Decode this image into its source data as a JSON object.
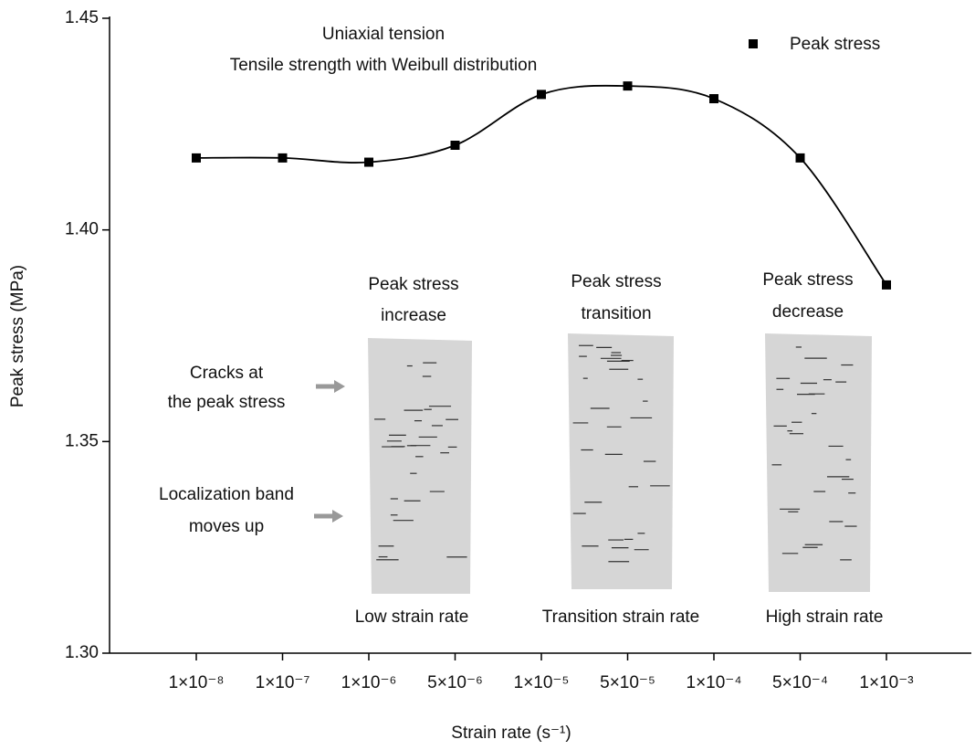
{
  "chart_data": {
    "type": "scatter",
    "x_label": "Strain rate (s⁻¹)",
    "y_label": "Peak stress (MPa)",
    "categories": [
      "1×10⁻⁸",
      "1×10⁻⁷",
      "1×10⁻⁶",
      "5×10⁻⁶",
      "1×10⁻⁵",
      "5×10⁻⁵",
      "1×10⁻⁴",
      "5×10⁻⁴",
      "1×10⁻³"
    ],
    "series": [
      {
        "name": "Peak stress",
        "color": "#000000",
        "values": [
          1.417,
          1.417,
          1.416,
          1.42,
          1.432,
          1.434,
          1.431,
          1.417,
          1.387
        ]
      }
    ],
    "ylim": [
      1.3,
      1.45
    ],
    "yticks": [
      {
        "value": 1.3,
        "label": "1.30"
      },
      {
        "value": 1.35,
        "label": "1.35"
      },
      {
        "value": 1.4,
        "label": "1.40"
      },
      {
        "value": 1.45,
        "label": "1.45"
      }
    ],
    "legend": "upper right",
    "annotations": {
      "header": [
        "Uniaxial tension",
        "Tensile strength with Weibull distribution"
      ],
      "panels": [
        {
          "title": [
            "Peak stress",
            "increase"
          ],
          "caption": "Low strain rate"
        },
        {
          "title": [
            "Peak stress",
            "transition"
          ],
          "caption": "Transition strain rate"
        },
        {
          "title": [
            "Peak stress",
            "decrease"
          ],
          "caption": "High strain rate"
        }
      ],
      "side": [
        [
          "Cracks at",
          "the peak stress"
        ],
        [
          "Localization band",
          "moves up"
        ]
      ]
    }
  }
}
